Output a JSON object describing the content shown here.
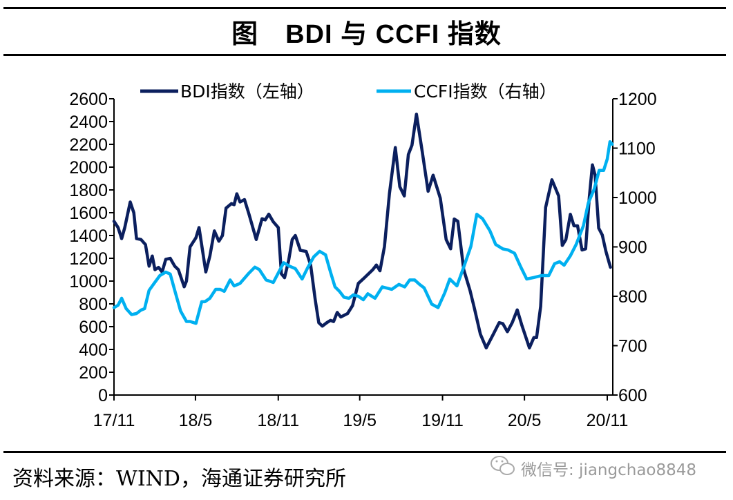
{
  "header": {
    "title": "图　BDI 与 CCFI 指数"
  },
  "footer": {
    "source": "资料来源：WIND，海通证券研究所",
    "watermark": "微信号: jiangchao8848",
    "watermark_icon": "wechat-icon"
  },
  "chart_data": {
    "type": "line",
    "title": "图　BDI 与 CCFI 指数",
    "xlabel": "",
    "ylabel": "",
    "y2label": "",
    "x_ticks": [
      "17/11",
      "18/5",
      "18/11",
      "19/5",
      "19/11",
      "20/5",
      "20/11"
    ],
    "x_tick_dates": [
      "2017-11-01",
      "2018-05-01",
      "2018-11-01",
      "2019-05-01",
      "2019-11-01",
      "2020-05-01",
      "2020-11-01"
    ],
    "y_left": {
      "range": [
        0,
        2600
      ],
      "ticks": [
        "0",
        "200",
        "400",
        "600",
        "800",
        "1000",
        "1200",
        "1400",
        "1600",
        "1800",
        "2000",
        "2200",
        "2400",
        "2600"
      ]
    },
    "y_right": {
      "range": [
        600,
        1200
      ],
      "ticks": [
        "600",
        "700",
        "800",
        "900",
        "1000",
        "1100",
        "1200"
      ]
    },
    "grid": false,
    "legend_position": "top",
    "series": [
      {
        "name": "BDI指数（左轴）",
        "axis": "left",
        "color": "#0B1F5E",
        "points": [
          [
            "2017-11-01",
            1525
          ],
          [
            "2017-11-10",
            1470
          ],
          [
            "2017-11-18",
            1373
          ],
          [
            "2017-11-25",
            1470
          ],
          [
            "2017-12-07",
            1694
          ],
          [
            "2017-12-15",
            1600
          ],
          [
            "2017-12-21",
            1373
          ],
          [
            "2017-12-31",
            1365
          ],
          [
            "2018-01-10",
            1320
          ],
          [
            "2018-01-18",
            1131
          ],
          [
            "2018-01-25",
            1220
          ],
          [
            "2018-01-31",
            1100
          ],
          [
            "2018-02-08",
            1120
          ],
          [
            "2018-02-16",
            1080
          ],
          [
            "2018-02-24",
            1190
          ],
          [
            "2018-03-06",
            1200
          ],
          [
            "2018-03-16",
            1131
          ],
          [
            "2018-03-24",
            1100
          ],
          [
            "2018-04-06",
            950
          ],
          [
            "2018-04-11",
            1000
          ],
          [
            "2018-04-19",
            1300
          ],
          [
            "2018-05-02",
            1380
          ],
          [
            "2018-05-09",
            1470
          ],
          [
            "2018-05-24",
            1080
          ],
          [
            "2018-06-02",
            1220
          ],
          [
            "2018-06-12",
            1440
          ],
          [
            "2018-06-22",
            1350
          ],
          [
            "2018-06-30",
            1400
          ],
          [
            "2018-07-08",
            1640
          ],
          [
            "2018-07-20",
            1680
          ],
          [
            "2018-07-26",
            1670
          ],
          [
            "2018-08-01",
            1766
          ],
          [
            "2018-08-08",
            1694
          ],
          [
            "2018-08-18",
            1715
          ],
          [
            "2018-08-28",
            1587
          ],
          [
            "2018-09-13",
            1365
          ],
          [
            "2018-09-26",
            1547
          ],
          [
            "2018-10-03",
            1537
          ],
          [
            "2018-10-11",
            1587
          ],
          [
            "2018-10-21",
            1520
          ],
          [
            "2018-11-01",
            1470
          ],
          [
            "2018-11-08",
            1064
          ],
          [
            "2018-11-15",
            1030
          ],
          [
            "2018-11-24",
            1180
          ],
          [
            "2018-12-02",
            1365
          ],
          [
            "2018-12-09",
            1400
          ],
          [
            "2018-12-20",
            1270
          ],
          [
            "2019-01-02",
            1260
          ],
          [
            "2019-01-12",
            1140
          ],
          [
            "2019-01-22",
            840
          ],
          [
            "2019-01-30",
            635
          ],
          [
            "2019-02-07",
            605
          ],
          [
            "2019-02-17",
            635
          ],
          [
            "2019-02-25",
            655
          ],
          [
            "2019-03-04",
            645
          ],
          [
            "2019-03-12",
            725
          ],
          [
            "2019-03-20",
            685
          ],
          [
            "2019-04-04",
            715
          ],
          [
            "2019-04-15",
            785
          ],
          [
            "2019-04-28",
            980
          ],
          [
            "2019-05-09",
            1020
          ],
          [
            "2019-05-30",
            1100
          ],
          [
            "2019-06-07",
            1141
          ],
          [
            "2019-06-15",
            1090
          ],
          [
            "2019-06-25",
            1303
          ],
          [
            "2019-07-06",
            1768
          ],
          [
            "2019-07-19",
            2172
          ],
          [
            "2019-07-29",
            1828
          ],
          [
            "2019-08-08",
            1747
          ],
          [
            "2019-08-17",
            2111
          ],
          [
            "2019-08-25",
            2192
          ],
          [
            "2019-09-04",
            2464
          ],
          [
            "2019-09-17",
            2131
          ],
          [
            "2019-09-30",
            1788
          ],
          [
            "2019-10-11",
            1929
          ],
          [
            "2019-10-27",
            1727
          ],
          [
            "2019-11-09",
            1364
          ],
          [
            "2019-11-19",
            1283
          ],
          [
            "2019-11-27",
            1545
          ],
          [
            "2019-12-05",
            1525
          ],
          [
            "2019-12-18",
            1101
          ],
          [
            "2020-01-01",
            919
          ],
          [
            "2020-01-11",
            758
          ],
          [
            "2020-01-24",
            535
          ],
          [
            "2020-02-06",
            414
          ],
          [
            "2020-02-22",
            535
          ],
          [
            "2020-03-06",
            636
          ],
          [
            "2020-03-14",
            626
          ],
          [
            "2020-03-24",
            556
          ],
          [
            "2020-04-04",
            636
          ],
          [
            "2020-04-15",
            747
          ],
          [
            "2020-04-25",
            616
          ],
          [
            "2020-05-12",
            414
          ],
          [
            "2020-05-22",
            505
          ],
          [
            "2020-05-28",
            505
          ],
          [
            "2020-06-06",
            778
          ],
          [
            "2020-06-17",
            1646
          ],
          [
            "2020-07-01",
            1889
          ],
          [
            "2020-07-16",
            1747
          ],
          [
            "2020-07-24",
            1313
          ],
          [
            "2020-08-01",
            1364
          ],
          [
            "2020-08-11",
            1586
          ],
          [
            "2020-08-19",
            1485
          ],
          [
            "2020-08-27",
            1485
          ],
          [
            "2020-09-06",
            1273
          ],
          [
            "2020-09-14",
            1283
          ],
          [
            "2020-09-22",
            1727
          ],
          [
            "2020-09-29",
            2020
          ],
          [
            "2020-10-05",
            1929
          ],
          [
            "2020-10-13",
            1465
          ],
          [
            "2020-10-21",
            1404
          ],
          [
            "2020-10-29",
            1262
          ],
          [
            "2020-11-08",
            1121
          ]
        ]
      },
      {
        "name": "CCFI指数（右轴）",
        "axis": "right",
        "color": "#00B0F0",
        "points": [
          [
            "2017-11-01",
            777
          ],
          [
            "2017-11-10",
            782
          ],
          [
            "2017-11-18",
            796
          ],
          [
            "2017-11-28",
            775
          ],
          [
            "2017-12-10",
            763
          ],
          [
            "2017-12-21",
            765
          ],
          [
            "2017-12-31",
            772
          ],
          [
            "2018-01-08",
            775
          ],
          [
            "2018-01-18",
            812
          ],
          [
            "2018-01-29",
            826
          ],
          [
            "2018-02-11",
            842
          ],
          [
            "2018-02-24",
            849
          ],
          [
            "2018-03-06",
            845
          ],
          [
            "2018-03-16",
            812
          ],
          [
            "2018-03-29",
            770
          ],
          [
            "2018-04-11",
            749
          ],
          [
            "2018-04-19",
            749
          ],
          [
            "2018-05-02",
            745
          ],
          [
            "2018-05-15",
            789
          ],
          [
            "2018-05-22",
            789
          ],
          [
            "2018-06-02",
            796
          ],
          [
            "2018-06-15",
            814
          ],
          [
            "2018-06-25",
            814
          ],
          [
            "2018-07-04",
            810
          ],
          [
            "2018-07-17",
            833
          ],
          [
            "2018-07-26",
            821
          ],
          [
            "2018-08-08",
            826
          ],
          [
            "2018-08-28",
            847
          ],
          [
            "2018-09-10",
            859
          ],
          [
            "2018-09-20",
            854
          ],
          [
            "2018-10-05",
            833
          ],
          [
            "2018-10-21",
            828
          ],
          [
            "2018-11-13",
            868
          ],
          [
            "2018-11-26",
            861
          ],
          [
            "2018-12-09",
            856
          ],
          [
            "2018-12-24",
            835
          ],
          [
            "2019-01-06",
            859
          ],
          [
            "2019-01-19",
            880
          ],
          [
            "2019-02-01",
            891
          ],
          [
            "2019-02-14",
            884
          ],
          [
            "2019-02-25",
            849
          ],
          [
            "2019-03-07",
            819
          ],
          [
            "2019-03-17",
            810
          ],
          [
            "2019-03-27",
            798
          ],
          [
            "2019-04-07",
            796
          ],
          [
            "2019-04-17",
            803
          ],
          [
            "2019-04-28",
            800
          ],
          [
            "2019-05-09",
            793
          ],
          [
            "2019-05-19",
            805
          ],
          [
            "2019-06-04",
            796
          ],
          [
            "2019-06-20",
            819
          ],
          [
            "2019-07-11",
            814
          ],
          [
            "2019-07-27",
            824
          ],
          [
            "2019-08-09",
            819
          ],
          [
            "2019-08-20",
            833
          ],
          [
            "2019-08-31",
            833
          ],
          [
            "2019-09-11",
            824
          ],
          [
            "2019-09-21",
            817
          ],
          [
            "2019-10-08",
            784
          ],
          [
            "2019-10-22",
            777
          ],
          [
            "2019-11-06",
            807
          ],
          [
            "2019-11-17",
            835
          ],
          [
            "2019-12-03",
            821
          ],
          [
            "2019-12-18",
            859
          ],
          [
            "2020-01-03",
            901
          ],
          [
            "2020-01-16",
            966
          ],
          [
            "2020-01-29",
            957
          ],
          [
            "2020-02-14",
            933
          ],
          [
            "2020-02-27",
            905
          ],
          [
            "2020-03-14",
            896
          ],
          [
            "2020-03-25",
            894
          ],
          [
            "2020-04-09",
            887
          ],
          [
            "2020-04-23",
            859
          ],
          [
            "2020-05-06",
            835
          ],
          [
            "2020-05-22",
            838
          ],
          [
            "2020-06-08",
            842
          ],
          [
            "2020-06-24",
            842
          ],
          [
            "2020-07-07",
            866
          ],
          [
            "2020-07-18",
            870
          ],
          [
            "2020-07-28",
            863
          ],
          [
            "2020-08-11",
            882
          ],
          [
            "2020-08-24",
            905
          ],
          [
            "2020-09-09",
            943
          ],
          [
            "2020-09-20",
            989
          ],
          [
            "2020-10-03",
            1017
          ],
          [
            "2020-10-14",
            1055
          ],
          [
            "2020-10-24",
            1055
          ],
          [
            "2020-11-01",
            1078
          ],
          [
            "2020-11-07",
            1113
          ],
          [
            "2020-11-12",
            1108
          ]
        ]
      }
    ]
  }
}
